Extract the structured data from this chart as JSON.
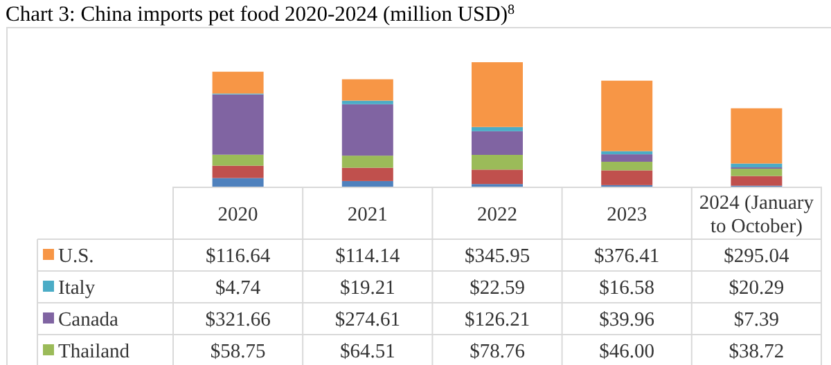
{
  "chart_data": {
    "type": "bar",
    "stacked": true,
    "title": "Chart 3: China imports pet food 2020-2024 (million USD)$^{8}$",
    "categories": [
      "2020",
      "2021",
      "2022",
      "2023",
      "2024 (January to October)"
    ],
    "legend": "bottom",
    "series": [
      {
        "color": "#4f81bd",
        "values": [
          46,
          30,
          14,
          8,
          5
        ]
      },
      {
        "color": "#c0504d",
        "values": [
          66,
          71,
          77,
          79,
          52
        ]
      },
      {
        "name": "Thailand",
        "color": "#9bbb59",
        "values": [
          58.75,
          64.51,
          78.76,
          46.0,
          38.72
        ],
        "value_labels": [
          "$58.75",
          "$64.51",
          "$78.76",
          "$46.00",
          "$38.72"
        ]
      },
      {
        "name": "Canada",
        "color": "#8064a2",
        "values": [
          321.66,
          274.61,
          126.21,
          39.96,
          7.39
        ],
        "value_labels": [
          "$321.66",
          "$274.61",
          "$126.21",
          "$39.96",
          "$7.39"
        ]
      },
      {
        "name": "Italy",
        "color": "#4bacc6",
        "values": [
          4.74,
          19.21,
          22.59,
          16.58,
          20.29
        ],
        "value_labels": [
          "$4.74",
          "$19.21",
          "$22.59",
          "$16.58",
          "$20.29"
        ]
      },
      {
        "name": "U.S.",
        "color": "#f79646",
        "values": [
          116.64,
          114.14,
          345.95,
          376.41,
          295.04
        ],
        "value_labels": [
          "$116.64",
          "$114.14",
          "$345.95",
          "$376.41",
          "$295.04"
        ]
      }
    ]
  }
}
